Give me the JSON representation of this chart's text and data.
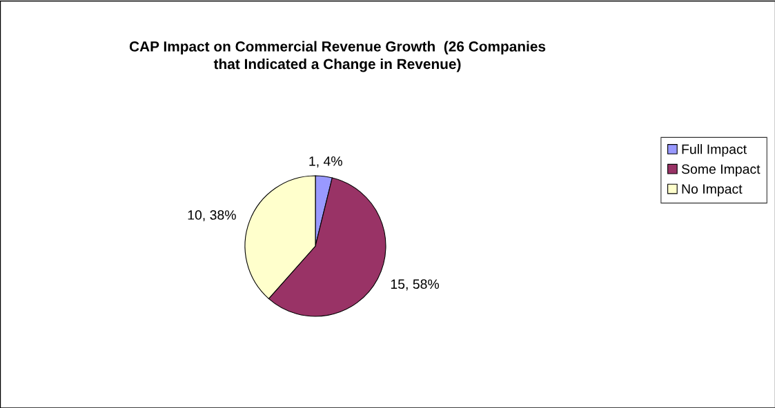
{
  "chart_data": {
    "type": "pie",
    "title": "CAP Impact on Commercial Revenue Growth  (26 Companies\nthat Indicated a Change in Revenue)",
    "categories": [
      "Full Impact",
      "Some Impact",
      "No Impact"
    ],
    "values": [
      1,
      15,
      10
    ],
    "colors": [
      "#9999ff",
      "#993366",
      "#ffffcc"
    ],
    "value_labels": [
      "1, 4%",
      "15, 58%",
      "10, 38%"
    ],
    "legend": "right"
  }
}
